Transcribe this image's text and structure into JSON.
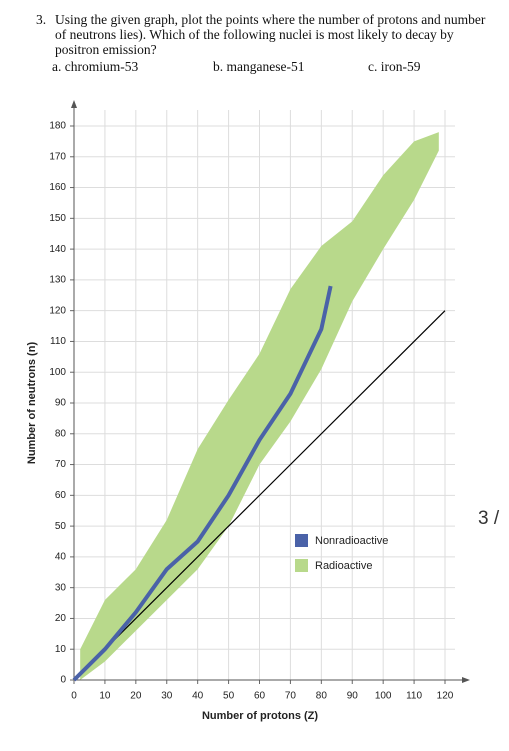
{
  "question": {
    "number": "3.",
    "text": "Using the given graph, plot the points where the number of protons and number of neutrons lies). Which of the following nuclei is most likely to decay by positron emission?",
    "options": [
      "a.  chromium-53",
      "b. manganese-51",
      "c. iron-59"
    ]
  },
  "page_marker": "3 /",
  "chart_data": {
    "type": "band",
    "xlabel": "Number of protons (Z)",
    "ylabel": "Number of neutrons (n)",
    "xlim": [
      0,
      120
    ],
    "ylim": [
      0,
      180
    ],
    "xticks": [
      0,
      10,
      20,
      30,
      40,
      50,
      60,
      70,
      80,
      90,
      100,
      110,
      120
    ],
    "yticks": [
      0,
      10,
      20,
      30,
      40,
      50,
      60,
      70,
      80,
      90,
      100,
      110,
      120,
      130,
      140,
      150,
      160,
      170,
      180
    ],
    "grid": true,
    "series": [
      {
        "name": "Nonradioactive",
        "color": "#4a62a8",
        "x": [
          0,
          10,
          20,
          30,
          40,
          50,
          60,
          70,
          80,
          83
        ],
        "values": [
          0,
          10,
          22,
          36,
          45,
          60,
          78,
          93,
          114,
          128
        ]
      },
      {
        "name": "Radioactive",
        "color": "#b8d98b",
        "x": [
          2,
          10,
          20,
          30,
          40,
          50,
          60,
          70,
          80,
          90,
          100,
          110,
          118
        ],
        "low": [
          0,
          6,
          16,
          26,
          36,
          50,
          70,
          84,
          101,
          123,
          140,
          156,
          172
        ],
        "high": [
          10,
          26,
          36,
          52,
          75,
          91,
          106,
          127,
          141,
          149,
          164,
          175,
          178
        ]
      }
    ],
    "reference_line": {
      "x": [
        0,
        120
      ],
      "values": [
        0,
        120
      ],
      "color": "#000000"
    }
  }
}
